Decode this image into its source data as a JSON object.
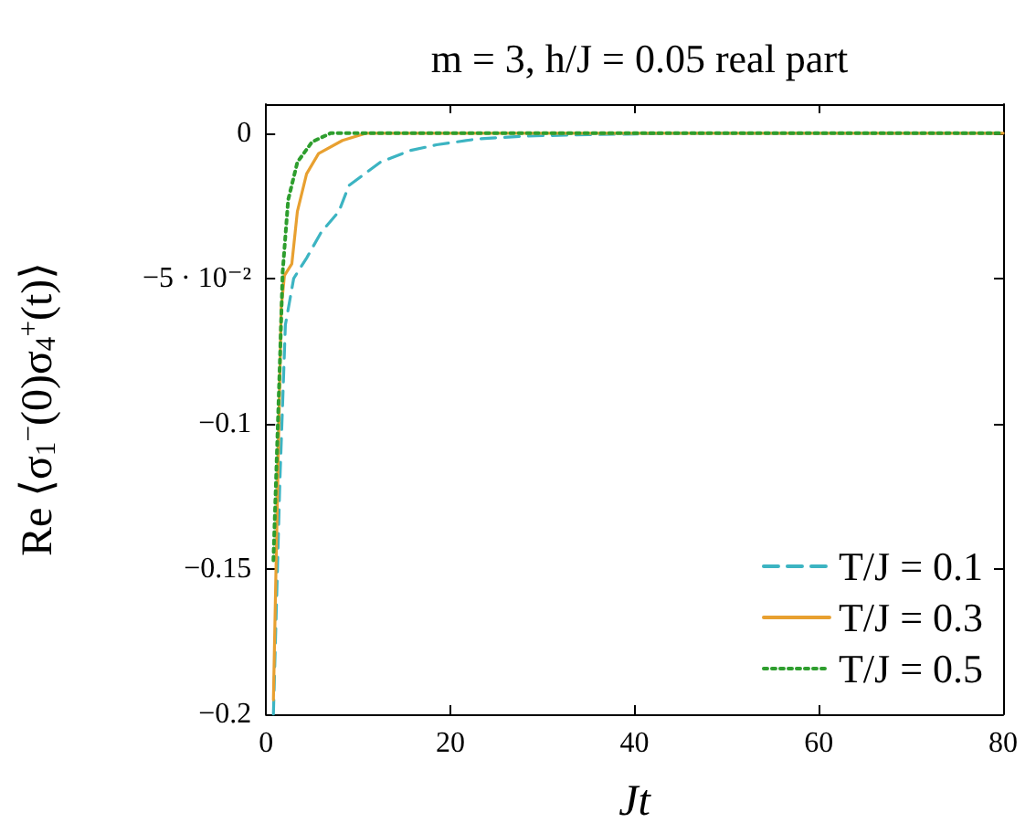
{
  "chart_data": {
    "type": "line",
    "title": "m = 3, h/J = 0.05 real part",
    "xlabel": "Jt",
    "ylabel": "Re ⟨σ$_{1}$$^{−}$(0)σ$_{4}$$^{+}$(t)⟩",
    "xlim": [
      0,
      80
    ],
    "xticks": [
      0,
      20,
      40,
      60,
      80
    ],
    "ylim": [
      -0.2,
      0.01
    ],
    "yticks": [
      {
        "value": 0,
        "label": "0"
      },
      {
        "value": -0.05,
        "label": "−5 · 10⁻²"
      },
      {
        "value": -0.1,
        "label": "−0.1"
      },
      {
        "value": -0.15,
        "label": "−0.15"
      },
      {
        "value": -0.2,
        "label": "−0.2"
      }
    ],
    "grid": false,
    "legend": "bottom right",
    "marker": "none",
    "series": [
      {
        "name": "T/J = 0.1",
        "color": "#3cb4c2",
        "line_style": "dashed",
        "x": [
          0.8,
          1.5,
          2.1,
          3.0,
          4.4,
          6.0,
          7.9,
          9.0,
          12.4,
          15.6,
          18.5,
          22.9,
          28,
          35,
          45,
          80
        ],
        "values": [
          -0.2,
          -0.12,
          -0.066,
          -0.05,
          -0.043,
          -0.034,
          -0.027,
          -0.018,
          -0.01,
          -0.006,
          -0.004,
          -0.002,
          -0.001,
          -0.0005,
          0,
          0
        ]
      },
      {
        "name": "T/J = 0.3",
        "color": "#e8a030",
        "line_style": "solid",
        "x": [
          0.8,
          1.1,
          1.65,
          2.0,
          2.8,
          3.4,
          4.4,
          5.7,
          8.3,
          10.9,
          80
        ],
        "values": [
          -0.195,
          -0.147,
          -0.06,
          -0.049,
          -0.045,
          -0.027,
          -0.014,
          -0.007,
          -0.0025,
          0,
          0
        ]
      },
      {
        "name": "T/J = 0.5",
        "color": "#2e9e2e",
        "line_style": "dotted",
        "x": [
          0.8,
          1.5,
          1.8,
          2.4,
          3.4,
          5.0,
          7.0,
          80
        ],
        "values": [
          -0.147,
          -0.079,
          -0.048,
          -0.023,
          -0.01,
          -0.003,
          0,
          0
        ]
      }
    ]
  }
}
